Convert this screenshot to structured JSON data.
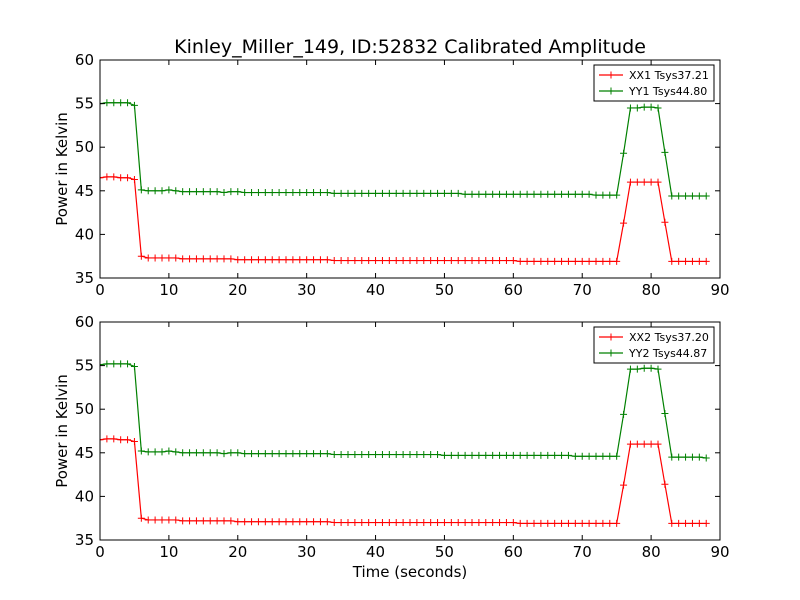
{
  "title": "Kinley_Miller_149, ID:52832 Calibrated Amplitude",
  "chart_data": [
    {
      "type": "line",
      "title": "Kinley_Miller_149, ID:52832 Calibrated Amplitude",
      "xlabel": "",
      "ylabel": "Power in Kelvin",
      "xlim": [
        0,
        90
      ],
      "ylim": [
        35,
        60
      ],
      "xticks": [
        0,
        10,
        20,
        30,
        40,
        50,
        60,
        70,
        80,
        90
      ],
      "yticks": [
        35,
        40,
        45,
        50,
        55,
        60
      ],
      "grid": false,
      "legend_position": "top-right",
      "marker": "plus",
      "series": [
        {
          "name": "XX1 Tsys37.21",
          "color": "#ff0000",
          "x": [
            0,
            1,
            2,
            3,
            4,
            5,
            6,
            7,
            8,
            9,
            10,
            11,
            12,
            13,
            14,
            15,
            16,
            17,
            18,
            19,
            20,
            21,
            22,
            23,
            24,
            25,
            26,
            27,
            28,
            29,
            30,
            31,
            32,
            33,
            34,
            35,
            36,
            37,
            38,
            39,
            40,
            41,
            42,
            43,
            44,
            45,
            46,
            47,
            48,
            49,
            50,
            51,
            52,
            53,
            54,
            55,
            56,
            57,
            58,
            59,
            60,
            61,
            62,
            63,
            64,
            65,
            66,
            67,
            68,
            69,
            70,
            71,
            72,
            73,
            74,
            75,
            76,
            77,
            78,
            79,
            80,
            81,
            82,
            83,
            84,
            85,
            86,
            87,
            88
          ],
          "y": [
            46.5,
            46.6,
            46.6,
            46.5,
            46.5,
            46.3,
            37.5,
            37.3,
            37.3,
            37.3,
            37.3,
            37.3,
            37.2,
            37.2,
            37.2,
            37.2,
            37.2,
            37.2,
            37.2,
            37.2,
            37.1,
            37.1,
            37.1,
            37.1,
            37.1,
            37.1,
            37.1,
            37.1,
            37.1,
            37.1,
            37.1,
            37.1,
            37.1,
            37.1,
            37.0,
            37.0,
            37.0,
            37.0,
            37.0,
            37.0,
            37.0,
            37.0,
            37.0,
            37.0,
            37.0,
            37.0,
            37.0,
            37.0,
            37.0,
            37.0,
            37.0,
            37.0,
            37.0,
            37.0,
            37.0,
            37.0,
            37.0,
            37.0,
            37.0,
            37.0,
            37.0,
            36.9,
            36.9,
            36.9,
            36.9,
            36.9,
            36.9,
            36.9,
            36.9,
            36.9,
            36.9,
            36.9,
            36.9,
            36.9,
            36.9,
            36.9,
            41.3,
            46.0,
            46.0,
            46.0,
            46.0,
            46.0,
            41.4,
            36.9,
            36.9,
            36.9,
            36.9,
            36.9,
            36.9
          ]
        },
        {
          "name": "YY1 Tsys44.80",
          "color": "#008000",
          "x": [
            0,
            1,
            2,
            3,
            4,
            5,
            6,
            7,
            8,
            9,
            10,
            11,
            12,
            13,
            14,
            15,
            16,
            17,
            18,
            19,
            20,
            21,
            22,
            23,
            24,
            25,
            26,
            27,
            28,
            29,
            30,
            31,
            32,
            33,
            34,
            35,
            36,
            37,
            38,
            39,
            40,
            41,
            42,
            43,
            44,
            45,
            46,
            47,
            48,
            49,
            50,
            51,
            52,
            53,
            54,
            55,
            56,
            57,
            58,
            59,
            60,
            61,
            62,
            63,
            64,
            65,
            66,
            67,
            68,
            69,
            70,
            71,
            72,
            73,
            74,
            75,
            76,
            77,
            78,
            79,
            80,
            81,
            82,
            83,
            84,
            85,
            86,
            87,
            88
          ],
          "y": [
            55.0,
            55.1,
            55.1,
            55.1,
            55.1,
            54.8,
            45.1,
            45.0,
            45.0,
            45.0,
            45.1,
            45.0,
            44.9,
            44.9,
            44.9,
            44.9,
            44.9,
            44.9,
            44.8,
            44.9,
            44.9,
            44.8,
            44.8,
            44.8,
            44.8,
            44.8,
            44.8,
            44.8,
            44.8,
            44.8,
            44.8,
            44.8,
            44.8,
            44.8,
            44.7,
            44.7,
            44.7,
            44.7,
            44.7,
            44.7,
            44.7,
            44.7,
            44.7,
            44.7,
            44.7,
            44.7,
            44.7,
            44.7,
            44.7,
            44.7,
            44.7,
            44.7,
            44.7,
            44.6,
            44.6,
            44.6,
            44.6,
            44.6,
            44.6,
            44.6,
            44.6,
            44.6,
            44.6,
            44.6,
            44.6,
            44.6,
            44.6,
            44.6,
            44.6,
            44.6,
            44.6,
            44.6,
            44.5,
            44.5,
            44.5,
            44.5,
            49.3,
            54.5,
            54.5,
            54.6,
            54.6,
            54.5,
            49.4,
            44.4,
            44.4,
            44.4,
            44.4,
            44.4,
            44.4
          ]
        }
      ]
    },
    {
      "type": "line",
      "title": "",
      "xlabel": "Time (seconds)",
      "ylabel": "Power in Kelvin",
      "xlim": [
        0,
        90
      ],
      "ylim": [
        35,
        60
      ],
      "xticks": [
        0,
        10,
        20,
        30,
        40,
        50,
        60,
        70,
        80,
        90
      ],
      "yticks": [
        35,
        40,
        45,
        50,
        55,
        60
      ],
      "grid": false,
      "legend_position": "top-right",
      "marker": "plus",
      "series": [
        {
          "name": "XX2 Tsys37.20",
          "color": "#ff0000",
          "x": [
            0,
            1,
            2,
            3,
            4,
            5,
            6,
            7,
            8,
            9,
            10,
            11,
            12,
            13,
            14,
            15,
            16,
            17,
            18,
            19,
            20,
            21,
            22,
            23,
            24,
            25,
            26,
            27,
            28,
            29,
            30,
            31,
            32,
            33,
            34,
            35,
            36,
            37,
            38,
            39,
            40,
            41,
            42,
            43,
            44,
            45,
            46,
            47,
            48,
            49,
            50,
            51,
            52,
            53,
            54,
            55,
            56,
            57,
            58,
            59,
            60,
            61,
            62,
            63,
            64,
            65,
            66,
            67,
            68,
            69,
            70,
            71,
            72,
            73,
            74,
            75,
            76,
            77,
            78,
            79,
            80,
            81,
            82,
            83,
            84,
            85,
            86,
            87,
            88
          ],
          "y": [
            46.5,
            46.6,
            46.6,
            46.5,
            46.5,
            46.3,
            37.5,
            37.3,
            37.3,
            37.3,
            37.3,
            37.3,
            37.2,
            37.2,
            37.2,
            37.2,
            37.2,
            37.2,
            37.2,
            37.2,
            37.1,
            37.1,
            37.1,
            37.1,
            37.1,
            37.1,
            37.1,
            37.1,
            37.1,
            37.1,
            37.1,
            37.1,
            37.1,
            37.1,
            37.0,
            37.0,
            37.0,
            37.0,
            37.0,
            37.0,
            37.0,
            37.0,
            37.0,
            37.0,
            37.0,
            37.0,
            37.0,
            37.0,
            37.0,
            37.0,
            37.0,
            37.0,
            37.0,
            37.0,
            37.0,
            37.0,
            37.0,
            37.0,
            37.0,
            37.0,
            37.0,
            36.9,
            36.9,
            36.9,
            36.9,
            36.9,
            36.9,
            36.9,
            36.9,
            36.9,
            36.9,
            36.9,
            36.9,
            36.9,
            36.9,
            36.9,
            41.3,
            46.0,
            46.0,
            46.0,
            46.0,
            46.0,
            41.4,
            36.9,
            36.9,
            36.9,
            36.9,
            36.9,
            36.9
          ]
        },
        {
          "name": "YY2 Tsys44.87",
          "color": "#008000",
          "x": [
            0,
            1,
            2,
            3,
            4,
            5,
            6,
            7,
            8,
            9,
            10,
            11,
            12,
            13,
            14,
            15,
            16,
            17,
            18,
            19,
            20,
            21,
            22,
            23,
            24,
            25,
            26,
            27,
            28,
            29,
            30,
            31,
            32,
            33,
            34,
            35,
            36,
            37,
            38,
            39,
            40,
            41,
            42,
            43,
            44,
            45,
            46,
            47,
            48,
            49,
            50,
            51,
            52,
            53,
            54,
            55,
            56,
            57,
            58,
            59,
            60,
            61,
            62,
            63,
            64,
            65,
            66,
            67,
            68,
            69,
            70,
            71,
            72,
            73,
            74,
            75,
            76,
            77,
            78,
            79,
            80,
            81,
            82,
            83,
            84,
            85,
            86,
            87,
            88
          ],
          "y": [
            55.1,
            55.2,
            55.2,
            55.2,
            55.2,
            54.9,
            45.2,
            45.1,
            45.1,
            45.1,
            45.2,
            45.1,
            45.0,
            45.0,
            45.0,
            45.0,
            45.0,
            45.0,
            44.9,
            45.0,
            45.0,
            44.9,
            44.9,
            44.9,
            44.9,
            44.9,
            44.9,
            44.9,
            44.9,
            44.9,
            44.9,
            44.9,
            44.9,
            44.9,
            44.8,
            44.8,
            44.8,
            44.8,
            44.8,
            44.8,
            44.8,
            44.8,
            44.8,
            44.8,
            44.8,
            44.8,
            44.8,
            44.8,
            44.8,
            44.8,
            44.7,
            44.7,
            44.7,
            44.7,
            44.7,
            44.7,
            44.7,
            44.7,
            44.7,
            44.7,
            44.7,
            44.7,
            44.7,
            44.7,
            44.7,
            44.7,
            44.7,
            44.7,
            44.7,
            44.6,
            44.6,
            44.6,
            44.6,
            44.6,
            44.6,
            44.6,
            49.4,
            54.6,
            54.6,
            54.7,
            54.7,
            54.6,
            49.5,
            44.5,
            44.5,
            44.5,
            44.5,
            44.5,
            44.4
          ]
        }
      ]
    }
  ]
}
